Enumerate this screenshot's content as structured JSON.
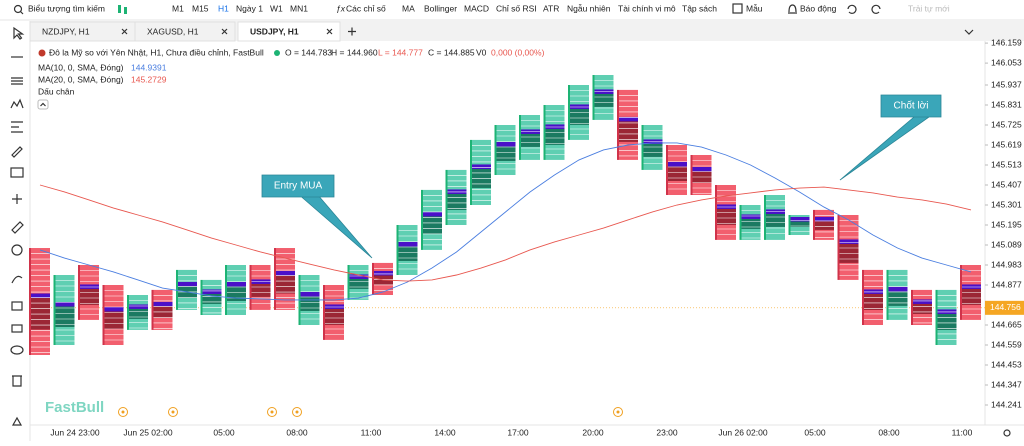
{
  "toolbar": {
    "search": "Biểu tượng tìm kiếm",
    "timeframes": [
      "M1",
      "M15",
      "H1",
      "Ngày 1",
      "W1",
      "MN1"
    ],
    "active_timeframe": 2,
    "indicators_menu": "Các chỉ số",
    "indicators": [
      "MA",
      "Bollinger",
      "MACD",
      "Chỉ số RSI",
      "ATR",
      "Ngẫu nhiên",
      "Tài chính vi mô",
      "Tập sách"
    ],
    "template": "Mẫu",
    "alert": "Báo động",
    "new_layout": "Trải tự mới"
  },
  "tabs": [
    "NZDJPY, H1",
    "XAGUSD, H1",
    "USDJPY, H1"
  ],
  "active_tab": 2,
  "legend": {
    "symbol": "Đô la Mỹ so với Yên Nhật, H1, Chưa điều chỉnh, FastBull",
    "ohlc": [
      "O = 144.783",
      "H = 144.960",
      "L = 144.777",
      "C = 144.885"
    ],
    "volume": "V0",
    "change": "0,000 (0,00%)",
    "footprint": "Dấu chân"
  },
  "watermark": "FastBull",
  "chart_data": {
    "type": "footprint",
    "ylim": [
      144.135,
      146.1755
    ],
    "yticks": [
      146.159,
      146.053,
      145.937,
      145.831,
      145.725,
      145.619,
      145.513,
      145.407,
      145.301,
      145.195,
      145.089,
      144.983,
      144.877,
      144.665,
      144.559,
      144.453,
      144.347,
      144.241
    ],
    "current_price": 144.756,
    "time_labels": [
      "Jun 24 23:00",
      "Jun 25 02:00",
      "05:00",
      "08:00",
      "11:00",
      "14:00",
      "17:00",
      "20:00",
      "23:00",
      "Jun 26 02:00",
      "05:00",
      "08:00",
      "11:00"
    ],
    "candles": {
      "high": [
        145.073,
        144.93,
        144.983,
        144.877,
        144.824,
        144.851,
        144.957,
        144.904,
        144.983,
        144.983,
        145.073,
        144.93,
        144.877,
        144.983,
        144.994,
        145.195,
        145.381,
        145.487,
        145.646,
        145.725,
        145.778,
        145.831,
        145.937,
        145.99,
        145.911,
        145.725,
        145.619,
        145.566,
        145.407,
        145.301,
        145.354,
        145.248,
        145.275,
        145.248,
        144.957,
        144.957,
        144.851,
        144.851,
        144.983
      ],
      "low": [
        144.506,
        144.559,
        144.692,
        144.559,
        144.639,
        144.639,
        144.745,
        144.718,
        144.718,
        144.745,
        144.745,
        144.665,
        144.586,
        144.798,
        144.824,
        144.93,
        145.063,
        145.195,
        145.301,
        145.46,
        145.54,
        145.54,
        145.646,
        145.752,
        145.54,
        145.487,
        145.354,
        145.354,
        145.116,
        145.116,
        145.116,
        145.142,
        145.116,
        144.904,
        144.665,
        144.692,
        144.665,
        144.559,
        144.692
      ],
      "up": [
        false,
        true,
        false,
        false,
        true,
        false,
        true,
        true,
        true,
        false,
        false,
        true,
        false,
        true,
        false,
        true,
        true,
        true,
        true,
        true,
        true,
        true,
        true,
        true,
        false,
        true,
        false,
        false,
        false,
        true,
        true,
        true,
        false,
        false,
        false,
        true,
        false,
        true,
        false
      ],
      "up_color": "#5fcfb2",
      "down_color": "#f25f6e",
      "poc_color": "#4a10c8"
    },
    "series": [
      {
        "name": "MA(10, 0, SMA, Đóng)",
        "last_label": "144.9391",
        "color": "#4a7ee0",
        "values": [
          145.063,
          145.02,
          144.983,
          144.946,
          144.904,
          144.861,
          144.84,
          144.819,
          144.808,
          144.803,
          144.798,
          144.798,
          144.798,
          144.808,
          144.84,
          144.893,
          144.967,
          145.052,
          145.158,
          145.264,
          145.37,
          145.46,
          145.54,
          145.593,
          145.619,
          145.63,
          145.63,
          145.608,
          145.566,
          145.513,
          145.444,
          145.37,
          145.29,
          145.222,
          145.142,
          145.073,
          145.02,
          144.983,
          144.946
        ]
      },
      {
        "name": "MA(20, 0, SMA, Đóng)",
        "last_label": "145.2729",
        "color": "#e8574f",
        "values": [
          145.407,
          145.37,
          145.328,
          145.285,
          145.248,
          145.211,
          145.169,
          145.126,
          145.089,
          145.052,
          145.02,
          144.988,
          144.957,
          144.93,
          144.904,
          144.898,
          144.904,
          144.93,
          144.967,
          145.01,
          145.063,
          145.105,
          145.142,
          145.179,
          145.222,
          145.264,
          145.301,
          145.328,
          145.349,
          145.365,
          145.381,
          145.391,
          145.396,
          145.381,
          145.365,
          145.343,
          145.328,
          145.306,
          145.275
        ]
      }
    ],
    "annotations": [
      "Entry MUA",
      "Chốt lời"
    ]
  }
}
